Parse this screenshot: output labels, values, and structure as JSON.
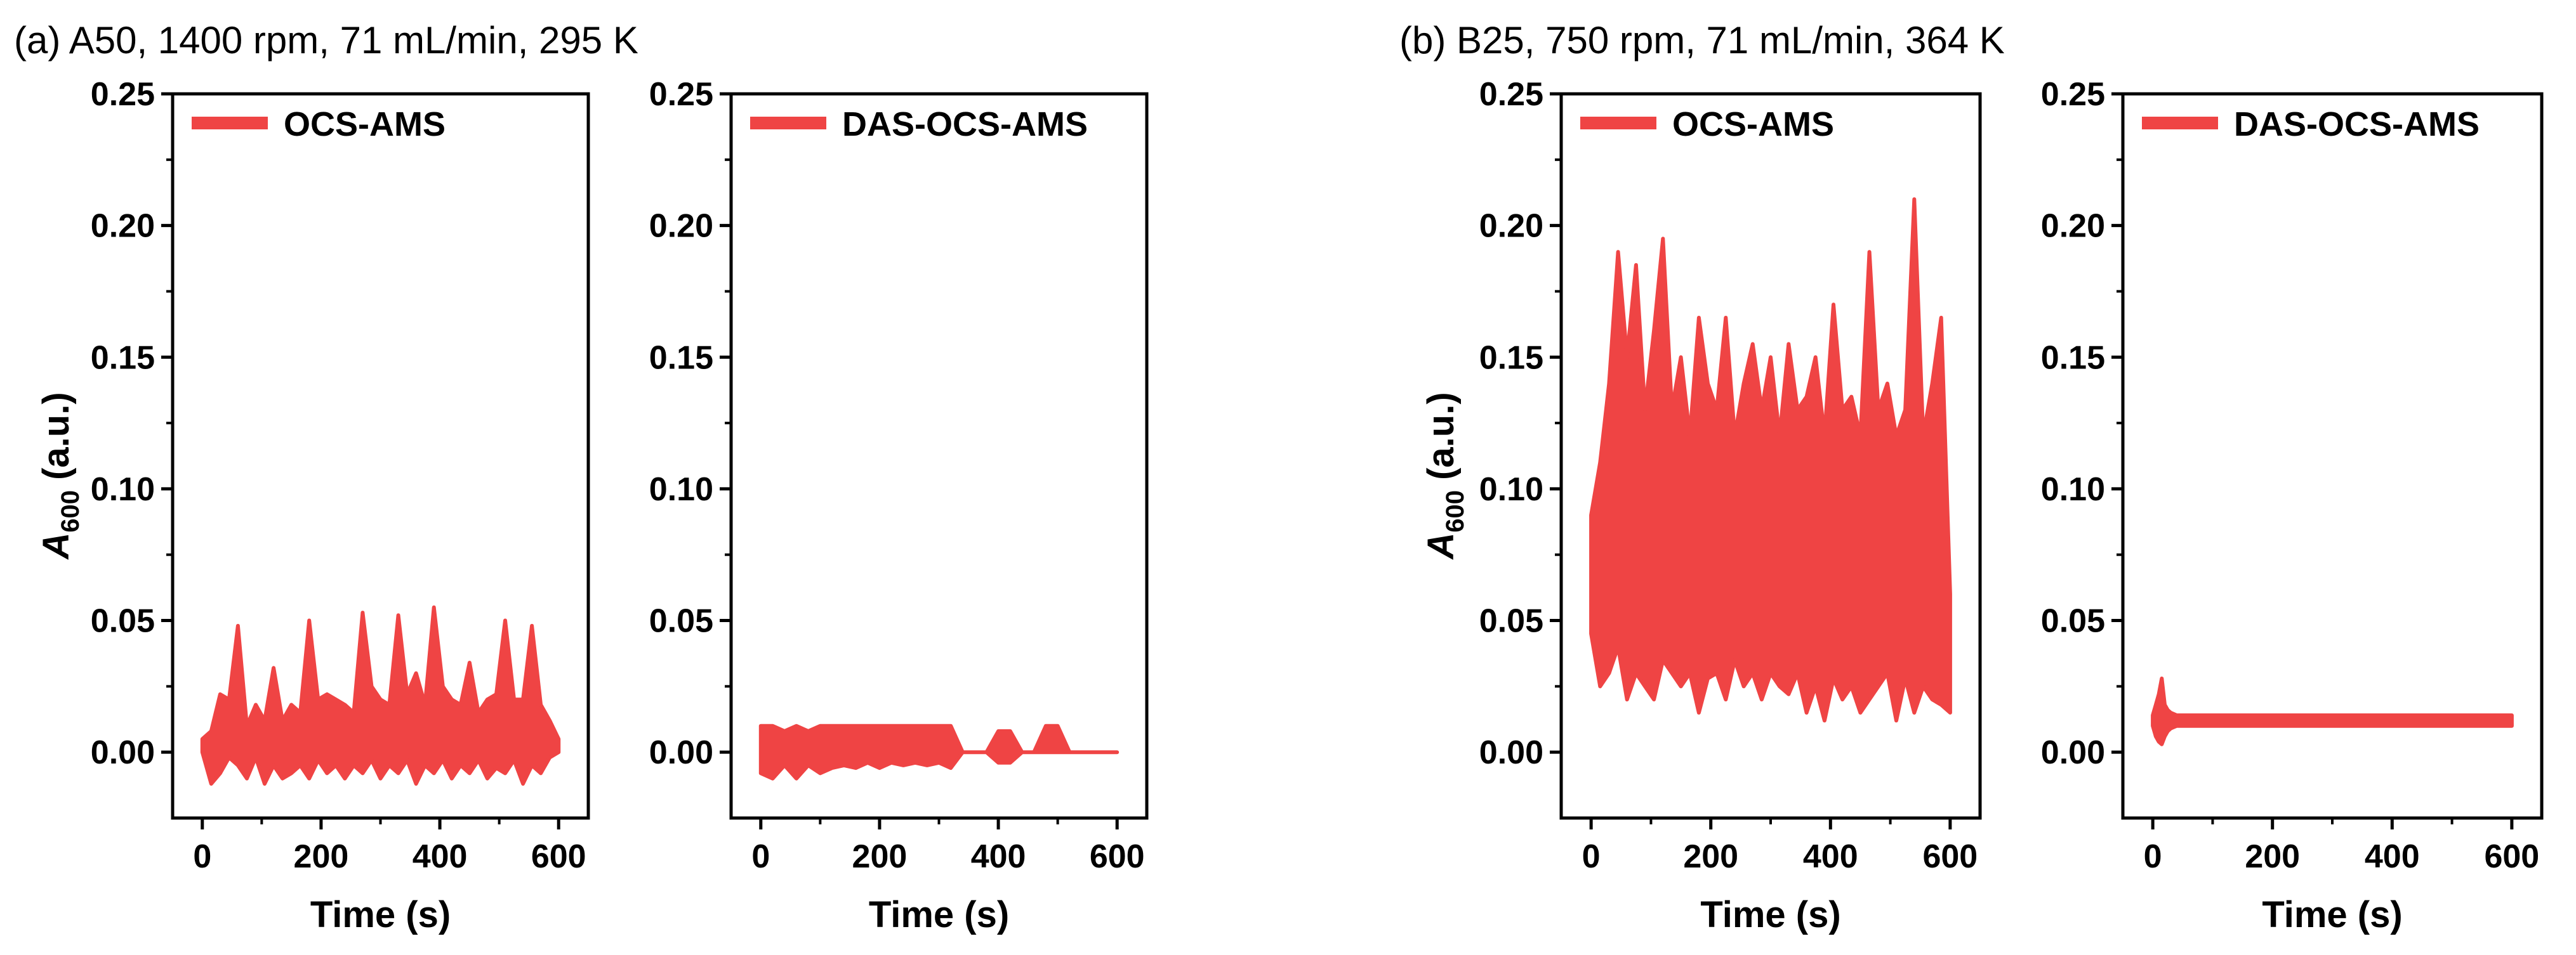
{
  "figure": {
    "title_a": "(a) A50, 1400 rpm, 71 mL/min, 295 K",
    "title_b": "(b) B25, 750 rpm, 71 mL/min, 364 K",
    "y_label_main": "A",
    "y_label_sub": "600",
    "y_label_unit": " (a.u.)",
    "series_color": "#EF4444"
  },
  "chart_data": [
    {
      "type": "line",
      "panel": "a-left",
      "title": "(a) A50, 1400 rpm, 71 mL/min, 295 K",
      "legend": "OCS-AMS",
      "xlabel": "Time (s)",
      "ylabel": "A600 (a.u.)",
      "xlim": [
        -50,
        650
      ],
      "ylim": [
        -0.025,
        0.25
      ],
      "xticks": [
        0,
        200,
        400,
        600
      ],
      "xtick_labels": [
        "0",
        "200",
        "400",
        "600"
      ],
      "yticks": [
        0,
        0.05,
        0.1,
        0.15,
        0.2,
        0.25
      ],
      "ytick_labels": [
        "0.00",
        "0.05",
        "0.10",
        "0.15",
        "0.20",
        "0.25"
      ],
      "series": [
        {
          "name": "OCS-AMS",
          "x": [
            0,
            15,
            30,
            45,
            60,
            75,
            90,
            105,
            120,
            135,
            150,
            165,
            180,
            195,
            210,
            225,
            240,
            255,
            270,
            285,
            300,
            315,
            330,
            345,
            360,
            375,
            390,
            405,
            420,
            435,
            450,
            465,
            480,
            495,
            510,
            525,
            540,
            555,
            570,
            585,
            600
          ],
          "upper": [
            0.005,
            0.008,
            0.022,
            0.02,
            0.048,
            0.01,
            0.018,
            0.012,
            0.032,
            0.012,
            0.018,
            0.015,
            0.05,
            0.02,
            0.022,
            0.02,
            0.018,
            0.015,
            0.053,
            0.025,
            0.02,
            0.018,
            0.052,
            0.022,
            0.03,
            0.018,
            0.055,
            0.025,
            0.02,
            0.018,
            0.034,
            0.015,
            0.02,
            0.022,
            0.05,
            0.02,
            0.02,
            0.048,
            0.018,
            0.012,
            0.005
          ],
          "lower": [
            0.0,
            -0.012,
            -0.008,
            -0.002,
            -0.005,
            -0.01,
            -0.002,
            -0.012,
            -0.005,
            -0.01,
            -0.008,
            -0.005,
            -0.01,
            -0.003,
            -0.008,
            -0.005,
            -0.01,
            -0.005,
            -0.008,
            -0.003,
            -0.01,
            -0.005,
            -0.008,
            -0.003,
            -0.012,
            -0.005,
            -0.008,
            -0.003,
            -0.01,
            -0.005,
            -0.008,
            -0.003,
            -0.01,
            -0.006,
            -0.008,
            -0.003,
            -0.012,
            -0.005,
            -0.008,
            -0.002,
            0.0
          ]
        }
      ]
    },
    {
      "type": "line",
      "panel": "a-right",
      "legend": "DAS-OCS-AMS",
      "xlabel": "Time (s)",
      "ylabel": "",
      "xlim": [
        -50,
        650
      ],
      "ylim": [
        -0.025,
        0.25
      ],
      "xticks": [
        0,
        200,
        400,
        600
      ],
      "xtick_labels": [
        "0",
        "200",
        "400",
        "600"
      ],
      "yticks": [
        0,
        0.05,
        0.1,
        0.15,
        0.2,
        0.25
      ],
      "ytick_labels": [
        "0.00",
        "0.05",
        "0.10",
        "0.15",
        "0.20",
        "0.25"
      ],
      "series": [
        {
          "name": "DAS-OCS-AMS",
          "x": [
            0,
            20,
            40,
            60,
            80,
            100,
            120,
            140,
            160,
            180,
            200,
            220,
            240,
            260,
            280,
            300,
            320,
            340,
            360,
            380,
            400,
            420,
            440,
            460,
            480,
            500,
            520,
            540,
            560,
            580,
            600
          ],
          "upper": [
            0.01,
            0.01,
            0.008,
            0.01,
            0.008,
            0.01,
            0.01,
            0.01,
            0.01,
            0.01,
            0.01,
            0.01,
            0.01,
            0.01,
            0.01,
            0.01,
            0.01,
            0.0,
            0.0,
            0.0,
            0.008,
            0.008,
            0.0,
            0.0,
            0.01,
            0.01,
            0.0,
            0.0,
            0.0,
            0.0,
            0.0
          ],
          "lower": [
            -0.008,
            -0.01,
            -0.005,
            -0.01,
            -0.005,
            -0.008,
            -0.006,
            -0.005,
            -0.006,
            -0.004,
            -0.006,
            -0.004,
            -0.005,
            -0.004,
            -0.005,
            -0.004,
            -0.006,
            0.0,
            0.0,
            0.0,
            -0.004,
            -0.004,
            0.0,
            0.0,
            0.0,
            0.0,
            0.0,
            0.0,
            0.0,
            0.0,
            0.0
          ]
        }
      ]
    },
    {
      "type": "line",
      "panel": "b-left",
      "title": "(b) B25, 750 rpm, 71 mL/min, 364 K",
      "legend": "OCS-AMS",
      "xlabel": "Time (s)",
      "ylabel": "A600 (a.u.)",
      "xlim": [
        -50,
        650
      ],
      "ylim": [
        -0.025,
        0.25
      ],
      "xticks": [
        0,
        200,
        400,
        600
      ],
      "xtick_labels": [
        "0",
        "200",
        "400",
        "600"
      ],
      "yticks": [
        0,
        0.05,
        0.1,
        0.15,
        0.2,
        0.25
      ],
      "ytick_labels": [
        "0.00",
        "0.05",
        "0.10",
        "0.15",
        "0.20",
        "0.25"
      ],
      "series": [
        {
          "name": "OCS-AMS",
          "x": [
            0,
            15,
            30,
            45,
            60,
            75,
            90,
            105,
            120,
            135,
            150,
            165,
            180,
            195,
            210,
            225,
            240,
            255,
            270,
            285,
            300,
            315,
            330,
            345,
            360,
            375,
            390,
            405,
            420,
            435,
            450,
            465,
            480,
            495,
            510,
            525,
            540,
            555,
            570,
            585,
            600
          ],
          "upper": [
            0.09,
            0.11,
            0.14,
            0.19,
            0.15,
            0.185,
            0.13,
            0.16,
            0.195,
            0.13,
            0.15,
            0.12,
            0.165,
            0.14,
            0.13,
            0.165,
            0.12,
            0.14,
            0.155,
            0.13,
            0.15,
            0.12,
            0.155,
            0.13,
            0.135,
            0.15,
            0.12,
            0.17,
            0.13,
            0.135,
            0.12,
            0.19,
            0.13,
            0.14,
            0.12,
            0.13,
            0.21,
            0.12,
            0.14,
            0.165,
            0.06
          ],
          "lower": [
            0.045,
            0.025,
            0.03,
            0.04,
            0.02,
            0.03,
            0.025,
            0.02,
            0.035,
            0.03,
            0.025,
            0.03,
            0.015,
            0.028,
            0.03,
            0.02,
            0.035,
            0.025,
            0.03,
            0.02,
            0.03,
            0.025,
            0.022,
            0.03,
            0.015,
            0.025,
            0.012,
            0.028,
            0.02,
            0.025,
            0.015,
            0.02,
            0.025,
            0.03,
            0.012,
            0.028,
            0.015,
            0.025,
            0.02,
            0.018,
            0.015
          ]
        }
      ]
    },
    {
      "type": "line",
      "panel": "b-right",
      "legend": "DAS-OCS-AMS",
      "xlabel": "Time (s)",
      "ylabel": "",
      "xlim": [
        -50,
        650
      ],
      "ylim": [
        -0.025,
        0.25
      ],
      "xticks": [
        0,
        200,
        400,
        600
      ],
      "xtick_labels": [
        "0",
        "200",
        "400",
        "600"
      ],
      "yticks": [
        0,
        0.05,
        0.1,
        0.15,
        0.2,
        0.25
      ],
      "ytick_labels": [
        "0.00",
        "0.05",
        "0.10",
        "0.15",
        "0.20",
        "0.25"
      ],
      "series": [
        {
          "name": "DAS-OCS-AMS",
          "x": [
            0,
            5,
            10,
            15,
            20,
            25,
            30,
            40,
            100,
            200,
            300,
            400,
            500,
            600
          ],
          "upper": [
            0.014,
            0.018,
            0.022,
            0.028,
            0.018,
            0.016,
            0.015,
            0.014,
            0.014,
            0.014,
            0.014,
            0.014,
            0.014,
            0.014
          ],
          "lower": [
            0.01,
            0.006,
            0.004,
            0.003,
            0.006,
            0.008,
            0.009,
            0.01,
            0.01,
            0.01,
            0.01,
            0.01,
            0.01,
            0.01
          ]
        }
      ]
    }
  ]
}
